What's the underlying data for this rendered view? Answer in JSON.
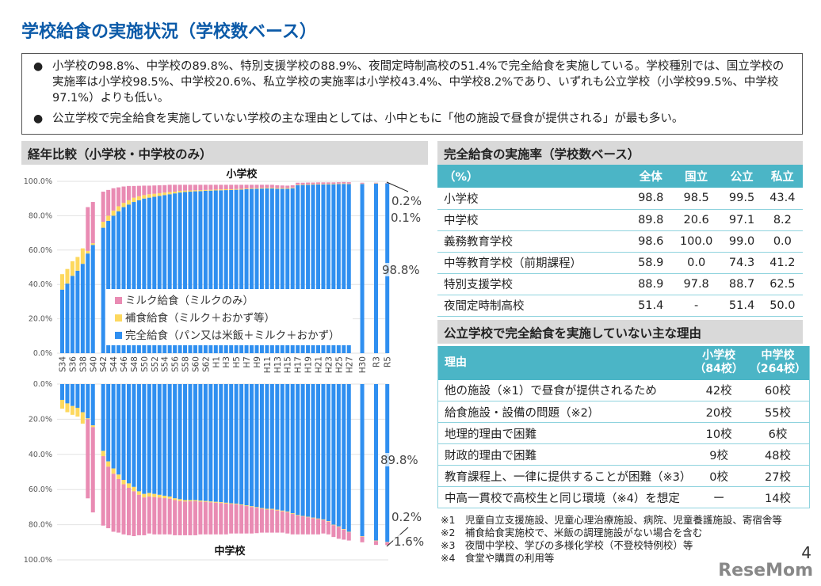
{
  "title": "学校給食の実施状況（学校数ベース）",
  "summary": [
    "小学校の98.8%、中学校の89.8%、特別支援学校の88.9%、夜間定時制高校の51.4%で完全給食を実施している。学校種別では、国立学校の実施率は小学校98.5%、中学校20.6%、私立学校の実施率は小学校43.4%、中学校8.2%であり、いずれも公立学校（小学校99.5%、中学校97.1%）よりも低い。",
    "公立学校で完全給食を実施していない学校の主な理由としては、小中ともに「他の施設で昼食が提供される」が最も多い。"
  ],
  "bullet": "●",
  "left_header": "経年比較（小学校・中学校のみ）",
  "colors": {
    "full": "#2f8ff0",
    "supplementary": "#fdd85e",
    "milk": "#e98bb3",
    "teal": "#4bb5c6",
    "title": "#0b5aa8"
  },
  "legend": [
    "ミルク給食（ミルクのみ）",
    "補食給食（ミルク＋おかず等）",
    "完全給食（パン又は米飯＋ミルク＋おかず）"
  ],
  "chart_data": [
    {
      "type": "bar",
      "stacked": true,
      "title": "小学校",
      "ylim": [
        0,
        100
      ],
      "yticks": [
        "100.0%",
        "80.0%",
        "60.0%",
        "40.0%",
        "20.0%",
        "0.0%"
      ],
      "grid": true,
      "categories": [
        "S34",
        "",
        "S36",
        "",
        "S38",
        "",
        "S40",
        "S42",
        "",
        "S44",
        "",
        "S46",
        "",
        "S48",
        "",
        "S50",
        "",
        "S52",
        "",
        "S54",
        "",
        "S56",
        "",
        "S58",
        "",
        "S60",
        "",
        "S62",
        "",
        "H1",
        "",
        "H3",
        "",
        "H5",
        "",
        "H7",
        "",
        "H9",
        "",
        "H11",
        "",
        "H13",
        "",
        "H15",
        "",
        "H17",
        "",
        "H19",
        "",
        "H21",
        "",
        "H23",
        "",
        "H25",
        "",
        "H27",
        "H30",
        "R3",
        "R5"
      ],
      "series": [
        {
          "name": "完全給食（パン又は米飯＋ミルク＋おかず）",
          "values": [
            37,
            40.5,
            45,
            48,
            52,
            58,
            63,
            73,
            77,
            80,
            82.5,
            85,
            86.5,
            88,
            89,
            90,
            90.5,
            91,
            91.5,
            92,
            92.5,
            93,
            93.5,
            93.8,
            94,
            94.2,
            94.3,
            94.5,
            94.6,
            94.7,
            94.8,
            94.9,
            95,
            95.1,
            95.2,
            95.4,
            95.6,
            95.7,
            95.8,
            95.9,
            95.9,
            95.7,
            95.7,
            95.7,
            96,
            97.8,
            97.9,
            98,
            98.1,
            98.2,
            98.2,
            98.3,
            98.3,
            98.4,
            98.5,
            98.4,
            98.5,
            98.7,
            98.8
          ]
        },
        {
          "name": "補食給食（ミルク＋おかず等）",
          "values": [
            9,
            8.5,
            8.5,
            8,
            9,
            1.5,
            1,
            3.5,
            3,
            3,
            3,
            2.5,
            2.5,
            2.5,
            2.3,
            2,
            2,
            1.8,
            1.6,
            1.5,
            1.3,
            1,
            1,
            0.8,
            0.7,
            0.6,
            0.6,
            0.5,
            0.5,
            0.5,
            0.5,
            0.5,
            0.4,
            0.4,
            0.4,
            0.4,
            0.4,
            0.4,
            0.4,
            0.4,
            0.4,
            0.4,
            0.4,
            0.4,
            0.4,
            0.3,
            0.3,
            0.3,
            0.3,
            0.3,
            0.3,
            0.3,
            0.3,
            0.3,
            0.3,
            0.3,
            0.2,
            0.2,
            0.1
          ]
        },
        {
          "name": "ミルク給食（ミルクのみ）",
          "values": [
            0,
            0,
            0,
            0,
            0,
            25.5,
            24,
            17.5,
            15,
            13,
            11,
            9.5,
            8.3,
            6.8,
            6.1,
            5.5,
            5,
            4.8,
            4.6,
            4.3,
            4.2,
            4,
            3.5,
            3.4,
            3.3,
            3.2,
            3.1,
            3,
            2.9,
            2.8,
            2.7,
            2.6,
            2.6,
            2.5,
            2.4,
            2.2,
            2,
            1.9,
            1.8,
            1.7,
            1.7,
            1.6,
            1.5,
            1.4,
            1.3,
            1.1,
            1,
            1,
            0.9,
            0.9,
            0.9,
            0.8,
            0.8,
            0.8,
            0.8,
            0.8,
            0.5,
            0.3,
            0.2
          ]
        }
      ],
      "annotations": [
        "0.2%",
        "0.1%",
        "98.8%"
      ]
    },
    {
      "type": "bar",
      "stacked": true,
      "inverted": true,
      "title": "中学校",
      "ylim": [
        0,
        100
      ],
      "yticks": [
        "0.0%",
        "20.0%",
        "40.0%",
        "60.0%",
        "80.0%",
        "100.0%"
      ],
      "grid": true,
      "series": [
        {
          "name": "完全給食（パン又は米飯＋ミルク＋おかず）",
          "values": [
            9,
            11,
            12.5,
            13.5,
            16,
            19.5,
            23.5,
            38,
            44,
            48,
            51.5,
            54.5,
            56.5,
            58.5,
            61,
            62.5,
            62,
            62.5,
            63,
            63.5,
            64,
            65,
            65.5,
            66,
            66,
            66,
            66.3,
            66.5,
            66.8,
            67,
            67.2,
            67.5,
            67.8,
            68,
            68.5,
            69,
            69.5,
            70,
            70.5,
            71,
            71,
            71.5,
            72,
            72.5,
            73.5,
            74.5,
            75,
            75.5,
            76,
            76.5,
            77,
            78,
            80,
            81,
            82.5,
            84,
            86.5,
            89,
            89.8
          ]
        },
        {
          "name": "補食給食（ミルク＋おかず等）",
          "values": [
            5,
            5,
            5,
            5,
            6.5,
            0.5,
            1,
            3,
            3,
            3,
            2.5,
            2.5,
            2.5,
            2.5,
            2,
            2,
            2,
            1.8,
            1.6,
            1.4,
            1.2,
            1,
            1,
            0.8,
            0.7,
            0.6,
            0.6,
            0.5,
            0.5,
            0.5,
            0.5,
            0.5,
            0.4,
            0.4,
            0.4,
            0.4,
            0.4,
            0.4,
            0.4,
            0.4,
            0.4,
            0.4,
            0.4,
            0.4,
            0.4,
            0.3,
            0.3,
            0.3,
            0.3,
            0.3,
            0.3,
            0.3,
            0.3,
            0.3,
            0.3,
            0.3,
            0.3,
            0.3,
            0.2
          ]
        },
        {
          "name": "ミルク給食（ミルクのみ）",
          "values": [
            0,
            0,
            0,
            0,
            0,
            45,
            48.5,
            39.5,
            35,
            33,
            30.5,
            28.5,
            27,
            25.5,
            23,
            21.5,
            21,
            21.2,
            20.9,
            20.6,
            20.3,
            20,
            19.5,
            19.2,
            19.3,
            19.4,
            18.6,
            18.5,
            18.2,
            18,
            17.8,
            17.5,
            16.8,
            16.6,
            16.1,
            15.6,
            15.1,
            14.4,
            13.6,
            13.1,
            13.1,
            12.6,
            12.1,
            12.1,
            11.6,
            10.7,
            10.2,
            9.7,
            9.2,
            8.7,
            7.7,
            7.2,
            6.7,
            6.7,
            5.7,
            4.7,
            3.2,
            2.2,
            1.6
          ]
        }
      ],
      "annotations": [
        "89.8%",
        "0.2%",
        "1.6%"
      ]
    }
  ],
  "rate_table": {
    "header": "完全給食の実施率（学校数ベース）",
    "columns": [
      "（%）",
      "全体",
      "国立",
      "公立",
      "私立"
    ],
    "rows": [
      [
        "小学校",
        "98.8",
        "98.5",
        "99.5",
        "43.4"
      ],
      [
        "中学校",
        "89.8",
        "20.6",
        "97.1",
        "8.2"
      ],
      [
        "義務教育学校",
        "98.6",
        "100.0",
        "99.0",
        "0.0"
      ],
      [
        "中等教育学校（前期課程）",
        "58.9",
        "0.0",
        "74.3",
        "41.2"
      ],
      [
        "特別支援学校",
        "88.9",
        "97.8",
        "88.7",
        "62.5"
      ],
      [
        "夜間定時制高校",
        "51.4",
        "-",
        "51.4",
        "50.0"
      ]
    ]
  },
  "reason_table": {
    "header": "公立学校で完全給食を実施していない主な理由",
    "columns": [
      [
        "理由"
      ],
      [
        "小学校",
        "（84校）"
      ],
      [
        "中学校",
        "（264校）"
      ]
    ],
    "rows": [
      [
        "他の施設（※1）で昼食が提供されるため",
        "42校",
        "60校"
      ],
      [
        "給食施設・設備の問題（※2）",
        "20校",
        "55校"
      ],
      [
        "地理的理由で困難",
        "10校",
        "6校"
      ],
      [
        "財政的理由で困難",
        "9校",
        "48校"
      ],
      [
        "教育課程上、一律に提供することが困難（※3）",
        "0校",
        "27校"
      ],
      [
        "中高一貫校で高校生と同じ環境（※4）を想定",
        "ー",
        "14校"
      ]
    ]
  },
  "notes": [
    "※1　児童自立支援施設、児童心理治療施設、病院、児童養護施設、寄宿舎等",
    "※2　補食給食実施校で、米飯の調理施設がない場合を含む",
    "※3　夜間中学校、学びの多様化学校（不登校特例校）等",
    "※4　食堂や購買の利用等"
  ],
  "page_number": "4",
  "logo": "ReseMom"
}
